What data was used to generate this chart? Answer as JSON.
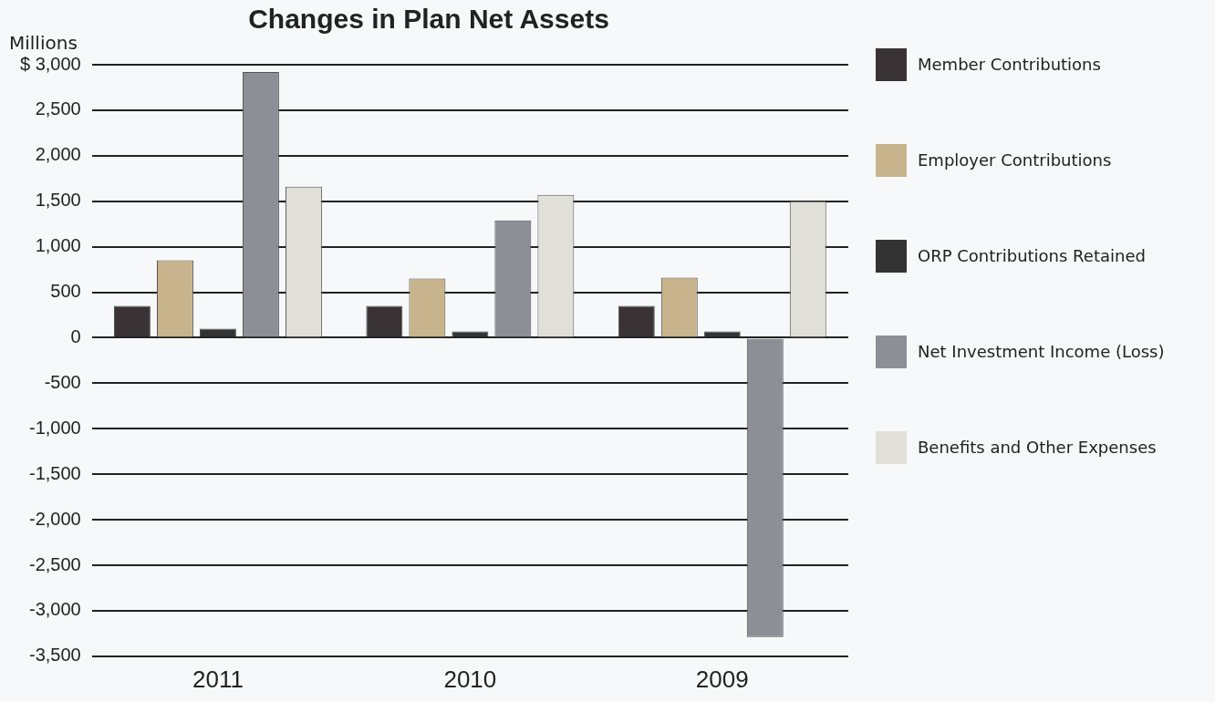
{
  "chart_data": {
    "type": "bar",
    "title": "Changes in Plan Net Assets",
    "ylabel": "Millions",
    "categories": [
      "2011",
      "2010",
      "2009"
    ],
    "series": [
      {
        "name": "Member Contributions",
        "color": "#3a3335",
        "values": [
          350,
          350,
          350
        ]
      },
      {
        "name": "Employer Contributions",
        "color": "#c8b48c",
        "values": [
          850,
          650,
          660
        ]
      },
      {
        "name": "ORP Contributions Retained",
        "color": "#333333",
        "values": [
          100,
          70,
          70
        ]
      },
      {
        "name": "Net Investment Income (Loss)",
        "color": "#8e8e96",
        "values": [
          2920,
          1290,
          -3290
        ]
      },
      {
        "name": "Benefits and Other Expenses",
        "color": "#e0e0d8",
        "values": [
          1660,
          1570,
          1500
        ]
      }
    ],
    "ylim": [
      -3500,
      3000
    ],
    "yticks": [
      {
        "value": -3500,
        "label": "-3,500"
      },
      {
        "value": -3000,
        "label": "-3,000"
      },
      {
        "value": -2500,
        "label": "-2,500"
      },
      {
        "value": -2000,
        "label": "-2,000"
      },
      {
        "value": -1500,
        "label": "-1,500"
      },
      {
        "value": -1000,
        "label": "-1,000"
      },
      {
        "value": -500,
        "label": "-500"
      },
      {
        "value": 0,
        "label": "0"
      },
      {
        "value": 500,
        "label": "500"
      },
      {
        "value": 1000,
        "label": "1,000"
      },
      {
        "value": 1500,
        "label": "1,500"
      },
      {
        "value": 2000,
        "label": "2,000"
      },
      {
        "value": 2500,
        "label": "2,500"
      },
      {
        "value": 3000,
        "label": "$ 3,000"
      }
    ],
    "grid": "y",
    "legend": "right"
  }
}
